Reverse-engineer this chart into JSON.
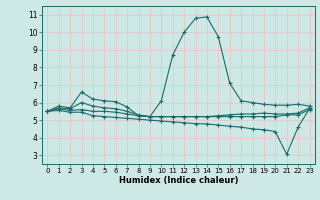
{
  "xlabel": "Humidex (Indice chaleur)",
  "bg_color": "#cde8e5",
  "grid_color": "#e8c8c8",
  "line_color": "#1a6b6b",
  "xlim": [
    -0.5,
    23.5
  ],
  "ylim": [
    2.5,
    11.5
  ],
  "xticks": [
    0,
    1,
    2,
    3,
    4,
    5,
    6,
    7,
    8,
    9,
    10,
    11,
    12,
    13,
    14,
    15,
    16,
    17,
    18,
    19,
    20,
    21,
    22,
    23
  ],
  "yticks": [
    3,
    4,
    5,
    6,
    7,
    8,
    9,
    10,
    11
  ],
  "lines": [
    {
      "x": [
        0,
        1,
        2,
        3,
        4,
        5,
        6,
        7,
        8,
        9,
        10,
        11,
        12,
        13,
        14,
        15,
        16,
        17,
        18,
        19,
        20,
        21,
        22,
        23
      ],
      "y": [
        5.5,
        5.8,
        5.7,
        6.6,
        6.2,
        6.1,
        6.05,
        5.75,
        5.25,
        5.2,
        6.1,
        8.7,
        10.0,
        10.8,
        10.88,
        9.75,
        7.1,
        6.1,
        6.0,
        5.9,
        5.85,
        5.85,
        5.9,
        5.8
      ]
    },
    {
      "x": [
        0,
        1,
        2,
        3,
        4,
        5,
        6,
        7,
        8,
        9,
        10,
        11,
        12,
        13,
        14,
        15,
        16,
        17,
        18,
        19,
        20,
        21,
        22,
        23
      ],
      "y": [
        5.5,
        5.55,
        5.45,
        5.45,
        5.25,
        5.2,
        5.15,
        5.1,
        5.05,
        5.0,
        4.95,
        4.9,
        4.85,
        4.8,
        4.78,
        4.72,
        4.65,
        4.6,
        4.5,
        4.45,
        4.35,
        3.05,
        4.6,
        5.65
      ]
    },
    {
      "x": [
        0,
        1,
        2,
        3,
        4,
        5,
        6,
        7,
        8,
        9,
        10,
        11,
        12,
        13,
        14,
        15,
        16,
        17,
        18,
        19,
        20,
        21,
        22,
        23
      ],
      "y": [
        5.5,
        5.65,
        5.55,
        5.6,
        5.5,
        5.5,
        5.45,
        5.35,
        5.25,
        5.2,
        5.2,
        5.2,
        5.2,
        5.2,
        5.2,
        5.2,
        5.2,
        5.2,
        5.2,
        5.2,
        5.2,
        5.3,
        5.3,
        5.6
      ]
    },
    {
      "x": [
        0,
        1,
        2,
        3,
        4,
        5,
        6,
        7,
        8,
        9,
        10,
        11,
        12,
        13,
        14,
        15,
        16,
        17,
        18,
        19,
        20,
        21,
        22,
        23
      ],
      "y": [
        5.5,
        5.7,
        5.65,
        6.0,
        5.8,
        5.7,
        5.65,
        5.5,
        5.3,
        5.2,
        5.2,
        5.2,
        5.2,
        5.2,
        5.2,
        5.25,
        5.3,
        5.35,
        5.35,
        5.4,
        5.35,
        5.35,
        5.4,
        5.7
      ]
    }
  ]
}
